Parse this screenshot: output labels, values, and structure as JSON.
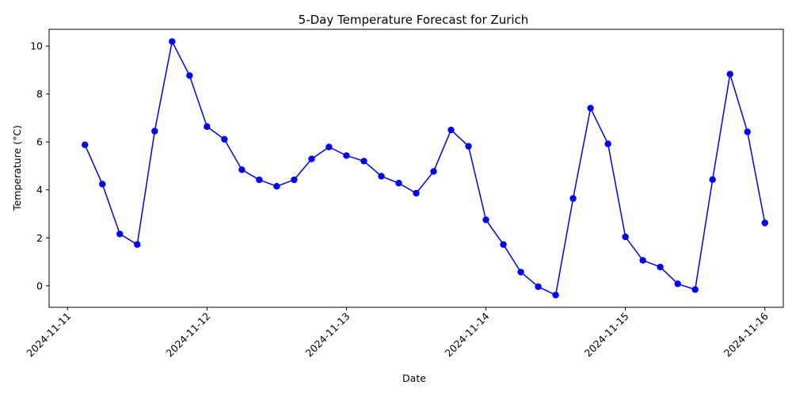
{
  "chart_data": {
    "type": "line",
    "title": "5-Day Temperature Forecast for  Zurich",
    "xlabel": "Date",
    "ylabel": "Temperature (°C)",
    "xlim": [
      "2024-11-10T20:50",
      "2024-11-16T03:10"
    ],
    "ylim": [
      -0.9,
      10.7
    ],
    "xticks": [
      "2024-11-11",
      "2024-11-12",
      "2024-11-13",
      "2024-11-14",
      "2024-11-15",
      "2024-11-16"
    ],
    "yticks": [
      0,
      2,
      4,
      6,
      8,
      10
    ],
    "grid": false,
    "legend": "none",
    "color": "#0000ff",
    "series": [
      {
        "x": [
          "2024-11-11T03:00",
          "2024-11-11T06:00",
          "2024-11-11T09:00",
          "2024-11-11T12:00",
          "2024-11-11T15:00",
          "2024-11-11T18:00",
          "2024-11-11T21:00",
          "2024-11-12T00:00",
          "2024-11-12T03:00",
          "2024-11-12T06:00",
          "2024-11-12T09:00",
          "2024-11-12T12:00",
          "2024-11-12T15:00",
          "2024-11-12T18:00",
          "2024-11-12T21:00",
          "2024-11-13T00:00",
          "2024-11-13T03:00",
          "2024-11-13T06:00",
          "2024-11-13T09:00",
          "2024-11-13T12:00",
          "2024-11-13T15:00",
          "2024-11-13T18:00",
          "2024-11-13T21:00",
          "2024-11-14T00:00",
          "2024-11-14T03:00",
          "2024-11-14T06:00",
          "2024-11-14T09:00",
          "2024-11-14T12:00",
          "2024-11-14T15:00",
          "2024-11-14T18:00",
          "2024-11-14T21:00",
          "2024-11-15T00:00",
          "2024-11-15T03:00",
          "2024-11-15T06:00",
          "2024-11-15T09:00",
          "2024-11-15T12:00",
          "2024-11-15T15:00",
          "2024-11-15T18:00",
          "2024-11-15T21:00",
          "2024-11-16T00:00"
        ],
        "y": [
          5.88,
          4.24,
          2.16,
          1.72,
          6.45,
          10.19,
          8.77,
          6.64,
          6.11,
          4.84,
          4.42,
          4.15,
          4.42,
          5.29,
          5.79,
          5.43,
          5.2,
          4.57,
          4.28,
          3.86,
          4.77,
          6.5,
          5.82,
          2.75,
          1.72,
          0.57,
          -0.04,
          -0.39,
          3.64,
          7.41,
          5.92,
          2.04,
          1.06,
          0.78,
          0.08,
          -0.16,
          4.43,
          8.83,
          6.42,
          2.62
        ]
      }
    ]
  }
}
